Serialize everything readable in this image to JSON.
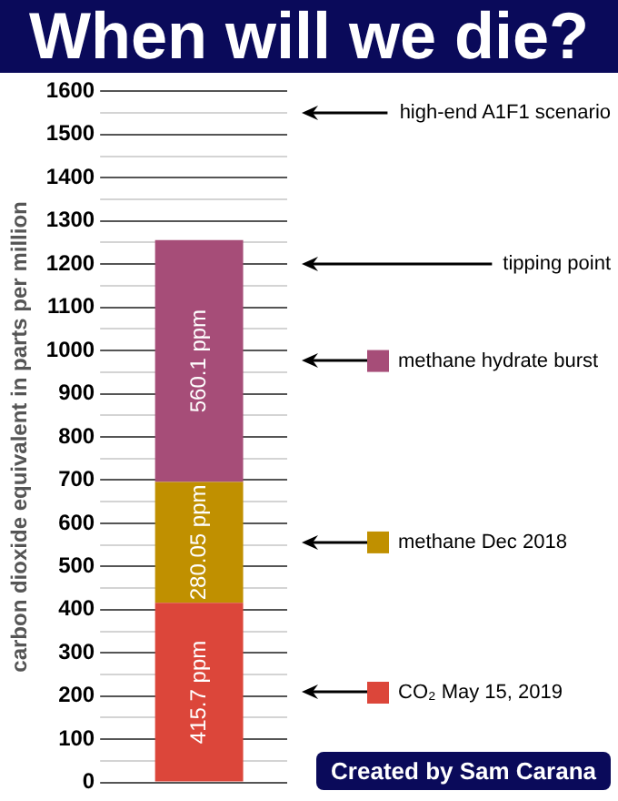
{
  "chart_data": {
    "type": "bar",
    "title": "When will we die?",
    "ylabel": "carbon dioxide equivalent in parts per million",
    "categories": [
      null
    ],
    "series": [
      {
        "name": "CO₂ May 15, 2019",
        "color": "#dc463a",
        "values": [
          415.7
        ],
        "value_labels": [
          "415.7 ppm"
        ]
      },
      {
        "name": "methane Dec 2018",
        "color": "#c09000",
        "values": [
          280.05
        ],
        "value_labels": [
          "280.05 ppm"
        ]
      },
      {
        "name": "methane hydrate burst",
        "color": "#a64d78",
        "values": [
          560.1
        ],
        "value_labels": [
          "560.1 ppm"
        ]
      }
    ],
    "stacked": true,
    "ylim": [
      0,
      1600
    ],
    "yticks": [
      0,
      {
        "value": 50,
        "label": null
      },
      100,
      {
        "value": 150,
        "label": null
      },
      200,
      {
        "value": 250,
        "label": null
      },
      300,
      {
        "value": 350,
        "label": null
      },
      400,
      {
        "value": 450,
        "label": null
      },
      500,
      {
        "value": 550,
        "label": null
      },
      600,
      {
        "value": 650,
        "label": null
      },
      700,
      {
        "value": 750,
        "label": null
      },
      800,
      {
        "value": 850,
        "label": null
      },
      900,
      {
        "value": 950,
        "label": null
      },
      1000,
      {
        "value": 1050,
        "label": null
      },
      1100,
      {
        "value": 1150,
        "label": null
      },
      1200,
      {
        "value": 1250,
        "label": null
      },
      1300,
      {
        "value": 1350,
        "label": null
      },
      1400,
      {
        "value": 1450,
        "label": null
      },
      1500,
      {
        "value": 1550,
        "label": null
      },
      1600
    ],
    "grid": true,
    "legend": "right",
    "ref_lines": [
      {
        "axis": "y",
        "value": 1550,
        "label": "high-end A1F1 scenario"
      },
      {
        "axis": "y",
        "value": 1200,
        "label": "tipping point"
      }
    ],
    "annotations": [
      "Created by Sam Carana"
    ]
  }
}
